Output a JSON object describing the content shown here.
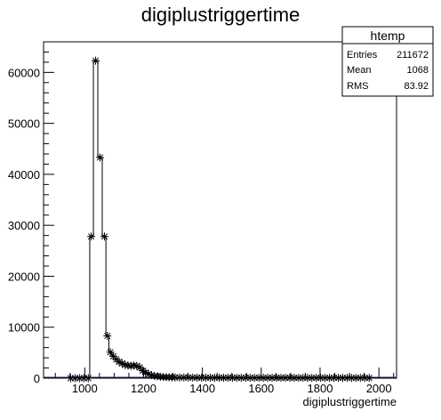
{
  "chart_data": {
    "type": "histogram",
    "title": "digiplustriggertime",
    "xlabel": "digiplustriggertime",
    "ylabel": "",
    "xlim": [
      860,
      2060
    ],
    "ylim": [
      0,
      66000
    ],
    "x_ticks": [
      1000,
      1200,
      1400,
      1600,
      1800,
      2000
    ],
    "y_ticks": [
      0,
      10000,
      20000,
      30000,
      40000,
      50000,
      60000
    ],
    "bin_width": 15,
    "series": [
      {
        "points": [
          [
            952,
            0
          ],
          [
            967,
            0
          ],
          [
            982,
            0
          ],
          [
            997,
            0
          ],
          [
            1012,
            0
          ],
          [
            1022,
            27800
          ],
          [
            1037,
            62300
          ],
          [
            1052,
            43300
          ],
          [
            1067,
            27800
          ],
          [
            1077,
            8300
          ],
          [
            1087,
            5100
          ],
          [
            1097,
            4300
          ],
          [
            1107,
            3700
          ],
          [
            1117,
            3200
          ],
          [
            1127,
            2900
          ],
          [
            1137,
            2600
          ],
          [
            1147,
            2500
          ],
          [
            1157,
            2400
          ],
          [
            1167,
            2500
          ],
          [
            1177,
            2400
          ],
          [
            1187,
            2100
          ],
          [
            1197,
            1500
          ],
          [
            1207,
            1100
          ],
          [
            1217,
            800
          ],
          [
            1227,
            600
          ],
          [
            1237,
            450
          ],
          [
            1247,
            350
          ],
          [
            1257,
            280
          ],
          [
            1267,
            230
          ],
          [
            1277,
            200
          ],
          [
            1287,
            180
          ],
          [
            1297,
            160
          ],
          [
            1307,
            150
          ],
          [
            1322,
            140
          ],
          [
            1337,
            130
          ],
          [
            1352,
            120
          ],
          [
            1367,
            115
          ],
          [
            1382,
            110
          ],
          [
            1397,
            105
          ],
          [
            1412,
            100
          ],
          [
            1427,
            100
          ],
          [
            1442,
            95
          ],
          [
            1457,
            90
          ],
          [
            1472,
            90
          ],
          [
            1487,
            85
          ],
          [
            1502,
            85
          ],
          [
            1517,
            80
          ],
          [
            1532,
            80
          ],
          [
            1547,
            80
          ],
          [
            1562,
            75
          ],
          [
            1577,
            75
          ],
          [
            1592,
            75
          ],
          [
            1607,
            70
          ],
          [
            1622,
            70
          ],
          [
            1637,
            70
          ],
          [
            1652,
            70
          ],
          [
            1667,
            65
          ],
          [
            1682,
            65
          ],
          [
            1697,
            65
          ],
          [
            1712,
            65
          ],
          [
            1727,
            60
          ],
          [
            1742,
            60
          ],
          [
            1757,
            60
          ],
          [
            1772,
            60
          ],
          [
            1787,
            60
          ],
          [
            1802,
            55
          ],
          [
            1817,
            55
          ],
          [
            1832,
            55
          ],
          [
            1847,
            55
          ],
          [
            1862,
            55
          ],
          [
            1877,
            50
          ],
          [
            1892,
            50
          ],
          [
            1907,
            50
          ],
          [
            1922,
            50
          ],
          [
            1937,
            50
          ],
          [
            1952,
            50
          ],
          [
            1967,
            45
          ]
        ]
      }
    ]
  },
  "stats_box": {
    "title": "htemp",
    "rows": [
      {
        "label": "Entries",
        "value": "211672"
      },
      {
        "label": "Mean",
        "value": "1068"
      },
      {
        "label": "RMS",
        "value": "83.92"
      }
    ]
  },
  "colors": {
    "histogram_line": "#000000",
    "frame": "#000000",
    "background": "#ffffff"
  }
}
